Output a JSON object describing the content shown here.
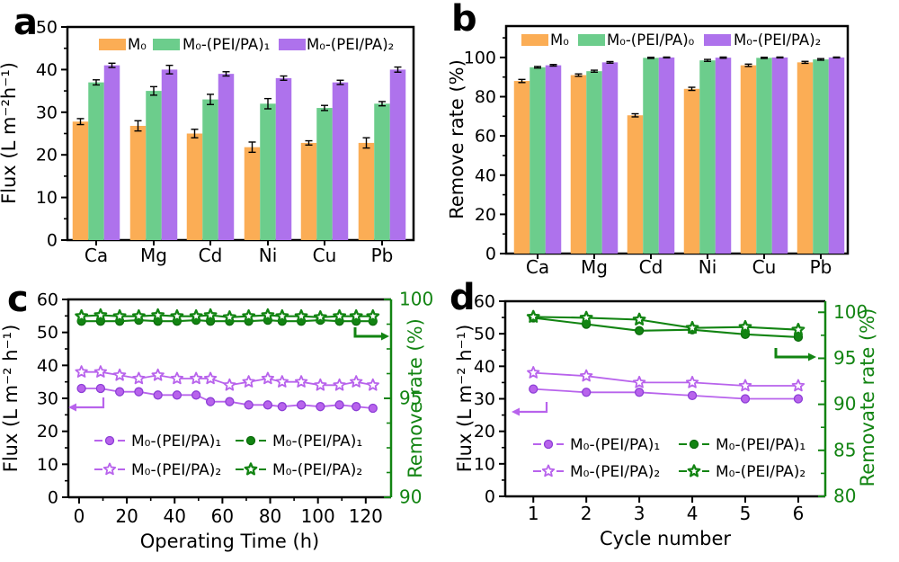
{
  "figure": {
    "background": "#ffffff",
    "panel_letters": {
      "a": "a",
      "b": "b",
      "c": "c",
      "d": "d"
    }
  },
  "colors": {
    "bar_orange": "#FBAD55",
    "bar_green": "#6CCD8C",
    "bar_purple": "#AE72EC",
    "line_purple": "#B863EC",
    "line_purple_edge": "#8C3ED6",
    "line_green": "#128412",
    "line_green_edge": "#0B6B0B",
    "axis_black": "#000000"
  },
  "chart_data": [
    {
      "panel": "a",
      "type": "bar",
      "ylabel": "Flux (L m⁻²h⁻¹)",
      "ylim": [
        0,
        50
      ],
      "yticks": [
        0,
        10,
        20,
        30,
        40,
        50
      ],
      "yminor": [
        5,
        15,
        25,
        35,
        45
      ],
      "categories": [
        "Ca",
        "Mg",
        "Cd",
        "Ni",
        "Cu",
        "Pb"
      ],
      "legend": [
        {
          "label": "M₀",
          "color_key": "bar_orange"
        },
        {
          "label": "M₀-(PEI/PA)₁",
          "color_key": "bar_green"
        },
        {
          "label": "M₀-(PEI/PA)₂",
          "color_key": "bar_purple"
        }
      ],
      "series": [
        {
          "name": "M₀",
          "color_key": "bar_orange",
          "values": [
            27.8,
            26.8,
            25.0,
            21.8,
            22.8,
            22.8
          ],
          "errors": [
            0.7,
            1.2,
            1.0,
            1.2,
            0.5,
            1.2
          ]
        },
        {
          "name": "M₀-(PEI/PA)₁",
          "color_key": "bar_green",
          "values": [
            37.0,
            35.0,
            33.0,
            32.0,
            31.0,
            32.0
          ],
          "errors": [
            0.6,
            1.0,
            1.2,
            1.2,
            0.6,
            0.5
          ]
        },
        {
          "name": "M₀-(PEI/PA)₂",
          "color_key": "bar_purple",
          "values": [
            41.0,
            40.0,
            39.0,
            38.0,
            37.0,
            40.0
          ],
          "errors": [
            0.5,
            1.0,
            0.5,
            0.5,
            0.5,
            0.6
          ]
        }
      ]
    },
    {
      "panel": "b",
      "type": "bar",
      "ylabel": "Remove rate (%)",
      "ylim": [
        0,
        116
      ],
      "yticks": [
        0,
        20,
        40,
        60,
        80,
        100
      ],
      "yminor": [
        10,
        30,
        50,
        70,
        90,
        110
      ],
      "categories": [
        "Ca",
        "Mg",
        "Cd",
        "Ni",
        "Cu",
        "Pb"
      ],
      "legend": [
        {
          "label": "M₀",
          "color_key": "bar_orange"
        },
        {
          "label": "M₀-(PEI/PA)₀",
          "color_key": "bar_green"
        },
        {
          "label": "M₀-(PEI/PA)₂",
          "color_key": "bar_purple"
        }
      ],
      "series": [
        {
          "name": "M₀",
          "color_key": "bar_orange",
          "values": [
            88,
            91,
            70.5,
            84,
            96,
            97.5
          ],
          "errors": [
            0.8,
            0.6,
            0.8,
            0.8,
            0.6,
            0.5
          ]
        },
        {
          "name": "M₀-(PEI/PA)₀",
          "color_key": "bar_green",
          "values": [
            95,
            93,
            99.8,
            98.5,
            99.8,
            99
          ],
          "errors": [
            0.4,
            0.5,
            0.3,
            0.5,
            0.3,
            0.4
          ]
        },
        {
          "name": "M₀-(PEI/PA)₂",
          "color_key": "bar_purple",
          "values": [
            96,
            97.5,
            100,
            99.9,
            100,
            100
          ],
          "errors": [
            0.4,
            0.4,
            0.2,
            0.3,
            0.2,
            0.2
          ]
        }
      ]
    },
    {
      "panel": "c",
      "type": "line",
      "xlabel": "Operating Time (h)",
      "ylabel_left": "Flux (L m⁻² h⁻¹)",
      "ylabel_right": "Remove rate (%)",
      "xlim": [
        -4.5,
        130.6
      ],
      "xticks": [
        0,
        20,
        40,
        60,
        80,
        100,
        120
      ],
      "xminor": [
        10,
        30,
        50,
        70,
        90,
        110
      ],
      "ylim_left": [
        0,
        60
      ],
      "yticks_left": [
        0,
        10,
        20,
        30,
        40,
        50,
        60
      ],
      "yminor_left": [
        5,
        15,
        25,
        35,
        45,
        55
      ],
      "ylim_right": [
        90,
        100
      ],
      "yticks_right": [
        90,
        95,
        100
      ],
      "yminor_right": [
        91.25,
        92.5,
        93.75,
        96.25,
        97.5,
        98.75
      ],
      "x": [
        1,
        9,
        17,
        25,
        33,
        41,
        49,
        55,
        63,
        71,
        79,
        85,
        93,
        101,
        109,
        116,
        123
      ],
      "series": [
        {
          "name": "M₀-(PEI/PA)₁",
          "axis": "left",
          "marker": "circle",
          "color_key": "line_purple",
          "values": [
            33,
            33,
            32,
            32,
            31,
            31,
            31,
            29,
            29,
            28,
            28,
            27.5,
            28,
            27.5,
            28,
            27.5,
            27
          ]
        },
        {
          "name": "M₀-(PEI/PA)₂",
          "axis": "left",
          "marker": "star",
          "color_key": "line_purple",
          "values": [
            38,
            38,
            37,
            36,
            37,
            36,
            36,
            36,
            34,
            35,
            36,
            35,
            35,
            34,
            34,
            35,
            34
          ]
        },
        {
          "name": "M₀-(PEI/PA)₁",
          "axis": "right",
          "marker": "circle",
          "color_key": "line_green",
          "values": [
            98.9,
            98.9,
            98.9,
            98.95,
            98.9,
            98.9,
            98.95,
            98.9,
            98.9,
            98.9,
            98.95,
            98.9,
            98.9,
            98.95,
            98.9,
            98.9,
            98.9
          ]
        },
        {
          "name": "M₀-(PEI/PA)₂",
          "axis": "right",
          "marker": "star",
          "color_key": "line_green",
          "values": [
            99.15,
            99.2,
            99.15,
            99.15,
            99.2,
            99.15,
            99.15,
            99.2,
            99.1,
            99.15,
            99.2,
            99.15,
            99.15,
            99.1,
            99.15,
            99.15,
            99.15
          ]
        }
      ],
      "legend": [
        {
          "label": "M₀-(PEI/PA)₁",
          "marker": "circle",
          "color_key": "line_purple"
        },
        {
          "label": "M₀-(PEI/PA)₂",
          "marker": "star",
          "color_key": "line_purple"
        },
        {
          "label": "M₀-(PEI/PA)₁",
          "marker": "circle",
          "color_key": "line_green"
        },
        {
          "label": "M₀-(PEI/PA)₂",
          "marker": "star",
          "color_key": "line_green"
        }
      ]
    },
    {
      "panel": "d",
      "type": "line",
      "xlabel": "Cycle number",
      "ylabel_left": "Flux (L m⁻² h⁻¹)",
      "ylabel_right": "Removate rate (%)",
      "xlim": [
        0.47,
        6.51
      ],
      "xticks": [
        1,
        2,
        3,
        4,
        5,
        6
      ],
      "xminor": [],
      "ylim_left": [
        0,
        60
      ],
      "yticks_left": [
        0,
        10,
        20,
        30,
        40,
        50,
        60
      ],
      "yminor_left": [
        5,
        15,
        25,
        35,
        45,
        55
      ],
      "ylim_right": [
        80,
        101.2
      ],
      "yticks_right": [
        80,
        85,
        90,
        95,
        100
      ],
      "yminor_right": [
        82.5,
        87.5,
        92.5,
        97.5
      ],
      "x": [
        1,
        2,
        3,
        4,
        5,
        6
      ],
      "series": [
        {
          "name": "M₀-(PEI/PA)₁",
          "axis": "left",
          "marker": "circle",
          "color_key": "line_purple",
          "values": [
            33,
            32,
            32,
            31,
            30,
            30
          ]
        },
        {
          "name": "M₀-(PEI/PA)₂",
          "axis": "left",
          "marker": "star",
          "color_key": "line_purple",
          "values": [
            38,
            37,
            35,
            35,
            34,
            34
          ]
        },
        {
          "name": "M₀-(PEI/PA)₁",
          "axis": "right",
          "marker": "circle",
          "color_key": "line_green",
          "values": [
            99.4,
            98.7,
            98.0,
            98.1,
            97.6,
            97.3
          ]
        },
        {
          "name": "M₀-(PEI/PA)₂",
          "axis": "right",
          "marker": "star",
          "color_key": "line_green",
          "values": [
            99.5,
            99.4,
            99.2,
            98.3,
            98.4,
            98.1
          ]
        }
      ],
      "legend": [
        {
          "label": "M₀-(PEI/PA)₁",
          "marker": "circle",
          "color_key": "line_purple"
        },
        {
          "label": "M₀-(PEI/PA)₂",
          "marker": "star",
          "color_key": "line_purple"
        },
        {
          "label": "M₀-(PEI/PA)₁",
          "marker": "circle",
          "color_key": "line_green"
        },
        {
          "label": "M₀-(PEI/PA)₂",
          "marker": "star",
          "color_key": "line_green"
        }
      ]
    }
  ]
}
